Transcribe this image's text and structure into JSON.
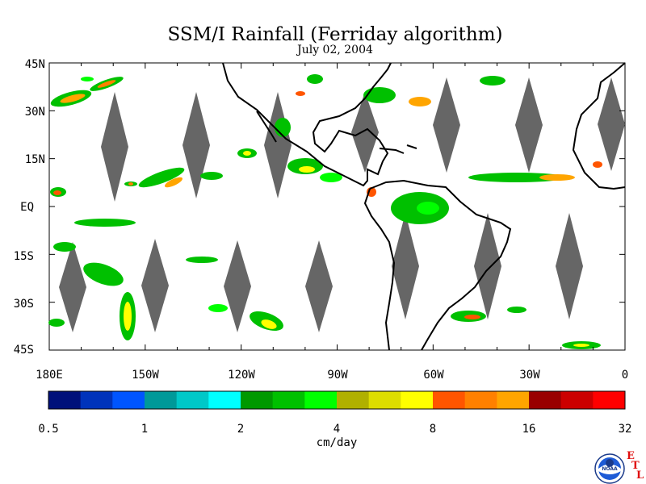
{
  "title": "SSM/I Rainfall (Ferriday algorithm)",
  "date": "July 02, 2004",
  "map": {
    "lat_ticks": [
      "45N",
      "30N",
      "15N",
      "EQ",
      "15S",
      "30S",
      "45S"
    ],
    "lon_ticks": [
      "180E",
      "150W",
      "120W",
      "90W",
      "60W",
      "30W",
      "0"
    ],
    "no_data_color": "#666666",
    "coast_color": "#000000"
  },
  "colorbar": {
    "unit_label": "cm/day",
    "tick_labels": [
      "0.5",
      "1",
      "2",
      "4",
      "8",
      "16",
      "32"
    ],
    "colors": [
      "#00107a",
      "#0033bb",
      "#0055ff",
      "#009999",
      "#00c8c8",
      "#00ffff",
      "#009900",
      "#00c000",
      "#00ff00",
      "#b0b000",
      "#dddd00",
      "#ffff00",
      "#ff5500",
      "#ff8000",
      "#ffa500",
      "#990000",
      "#cc0000",
      "#ff0000"
    ]
  },
  "logo": {
    "noaa_text": "NOAA",
    "etl_letters": [
      "E",
      "T",
      "L"
    ]
  }
}
